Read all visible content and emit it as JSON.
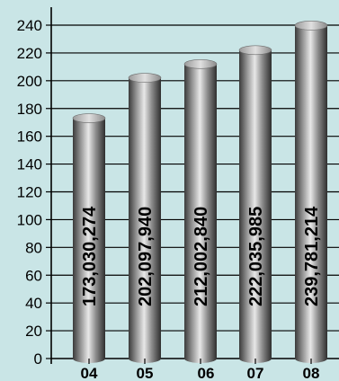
{
  "chart_data": {
    "type": "bar",
    "title": "",
    "xlabel": "",
    "ylabel": "",
    "categories": [
      "04",
      "05",
      "06",
      "07",
      "08"
    ],
    "values": [
      173030274,
      202097940,
      212002840,
      222035985,
      239781214
    ],
    "value_labels": [
      "173,030,274",
      "202,097,940",
      "212,002,840",
      "222,035,985",
      "239,781,214"
    ],
    "y_axis_unit_scale": 1000000,
    "yticks": [
      0,
      20,
      40,
      60,
      80,
      100,
      120,
      140,
      160,
      180,
      200,
      220,
      240
    ],
    "ylim": [
      0,
      250
    ],
    "grid": true,
    "legend": "none",
    "colors": {
      "background": "#c9e5e6",
      "bar_dark": "#2f2f2f",
      "bar_mid": "#9a9a9a",
      "bar_light": "#e8e8e8",
      "gridline": "#000000"
    }
  }
}
